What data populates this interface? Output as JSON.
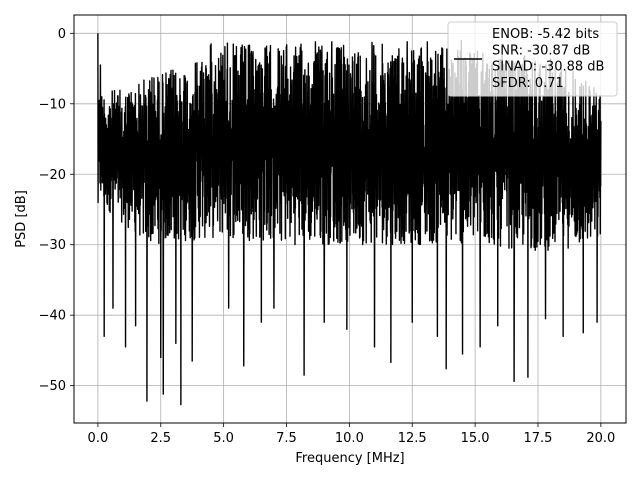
{
  "chart_data": {
    "type": "line",
    "xlabel": "Frequency [MHz]",
    "ylabel": "PSD [dB]",
    "xlim": [
      -0.95,
      21.0
    ],
    "ylim": [
      -55.3,
      2.6
    ],
    "xticks": [
      0.0,
      2.5,
      5.0,
      7.5,
      10.0,
      12.5,
      15.0,
      17.5,
      20.0
    ],
    "xtick_labels": [
      "0.0",
      "2.5",
      "5.0",
      "7.5",
      "10.0",
      "12.5",
      "15.0",
      "17.5",
      "20.0"
    ],
    "yticks": [
      0,
      -10,
      -20,
      -30,
      -40,
      -50
    ],
    "ytick_labels": [
      "0",
      "−10",
      "−20",
      "−30",
      "−40",
      "−50"
    ],
    "grid": true,
    "legend_position": "top-right",
    "line_color": "#000000",
    "series": [
      {
        "legend_lines": [
          "ENOB: -5.42 bits",
          "SNR: -30.87 dB",
          "SINAD: -30.88 dB",
          "SFDR: 0.71"
        ],
        "x_range": [
          0.0,
          20.0
        ],
        "peak": {
          "x": 0.0,
          "y": 0.0
        },
        "upper_envelope": [
          {
            "x": 0.0,
            "y": -8
          },
          {
            "x": 1.0,
            "y": -8
          },
          {
            "x": 2.0,
            "y": -6
          },
          {
            "x": 3.0,
            "y": -5
          },
          {
            "x": 4.0,
            "y": -3
          },
          {
            "x": 4.5,
            "y": -1.5
          },
          {
            "x": 5.5,
            "y": -1.5
          },
          {
            "x": 7.5,
            "y": -1.5
          },
          {
            "x": 10.0,
            "y": -1.5
          },
          {
            "x": 12.5,
            "y": -1.5
          },
          {
            "x": 14.0,
            "y": -2
          },
          {
            "x": 16.0,
            "y": -3
          },
          {
            "x": 17.5,
            "y": -3
          },
          {
            "x": 18.5,
            "y": -4
          },
          {
            "x": 20.0,
            "y": -8
          }
        ],
        "lower_envelope": [
          {
            "x": 0.0,
            "y": -24
          },
          {
            "x": 2.0,
            "y": -30
          },
          {
            "x": 5.0,
            "y": -29
          },
          {
            "x": 7.5,
            "y": -30
          },
          {
            "x": 10.0,
            "y": -30
          },
          {
            "x": 12.5,
            "y": -30
          },
          {
            "x": 15.0,
            "y": -30
          },
          {
            "x": 17.5,
            "y": -31
          },
          {
            "x": 20.0,
            "y": -30
          }
        ],
        "deep_nulls": [
          {
            "x": 0.25,
            "y": -43
          },
          {
            "x": 0.6,
            "y": -39
          },
          {
            "x": 1.1,
            "y": -44.5
          },
          {
            "x": 1.5,
            "y": -41.5
          },
          {
            "x": 1.95,
            "y": -52.2
          },
          {
            "x": 2.5,
            "y": -46
          },
          {
            "x": 2.6,
            "y": -51.2
          },
          {
            "x": 3.1,
            "y": -44
          },
          {
            "x": 3.3,
            "y": -52.7
          },
          {
            "x": 3.75,
            "y": -46.5
          },
          {
            "x": 4.5,
            "y": -39
          },
          {
            "x": 5.2,
            "y": -39
          },
          {
            "x": 5.8,
            "y": -47.2
          },
          {
            "x": 6.5,
            "y": -41
          },
          {
            "x": 7.0,
            "y": -39
          },
          {
            "x": 8.2,
            "y": -48.5
          },
          {
            "x": 9.0,
            "y": -41
          },
          {
            "x": 9.9,
            "y": -42
          },
          {
            "x": 11.0,
            "y": -44.5
          },
          {
            "x": 11.65,
            "y": -46.7
          },
          {
            "x": 12.5,
            "y": -41
          },
          {
            "x": 13.5,
            "y": -43
          },
          {
            "x": 13.85,
            "y": -47.6
          },
          {
            "x": 14.5,
            "y": -45.5
          },
          {
            "x": 15.2,
            "y": -44.5
          },
          {
            "x": 15.9,
            "y": -41.5
          },
          {
            "x": 16.55,
            "y": -49.4
          },
          {
            "x": 17.1,
            "y": -48.8
          },
          {
            "x": 17.8,
            "y": -40.5
          },
          {
            "x": 18.5,
            "y": -43
          },
          {
            "x": 19.3,
            "y": -42.5
          },
          {
            "x": 19.85,
            "y": -41
          }
        ],
        "tall_spikes": [
          {
            "x": 0.1,
            "y": -4.5
          },
          {
            "x": 2.15,
            "y": -6.3
          },
          {
            "x": 4.5,
            "y": -1.5
          },
          {
            "x": 5.05,
            "y": -1.9
          },
          {
            "x": 5.15,
            "y": -1.4
          },
          {
            "x": 6.7,
            "y": -2.5
          },
          {
            "x": 8.65,
            "y": -1.2
          },
          {
            "x": 9.3,
            "y": -1.2
          },
          {
            "x": 10.9,
            "y": -1.3
          },
          {
            "x": 12.3,
            "y": -1.2
          },
          {
            "x": 13.1,
            "y": -1.2
          },
          {
            "x": 14.45,
            "y": -1.0
          }
        ]
      }
    ]
  }
}
